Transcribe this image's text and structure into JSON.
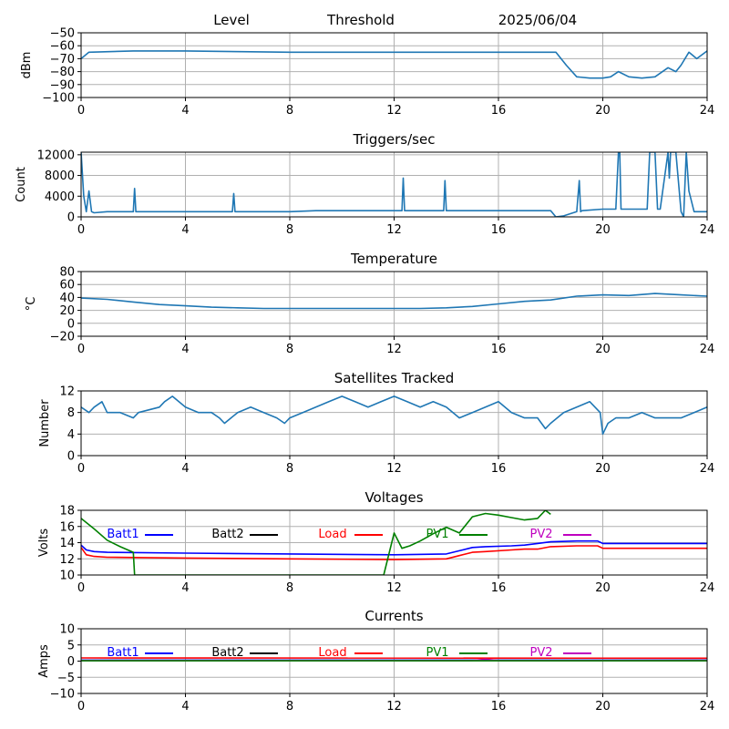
{
  "header": {
    "title_left": "Level",
    "title_mid": "Threshold",
    "title_date": "2025/06/04"
  },
  "chart_data": [
    {
      "id": "level",
      "type": "line",
      "title": "",
      "ylabel": "dBm",
      "xlim": [
        0,
        24
      ],
      "ylim": [
        -100,
        -50
      ],
      "xticks": [
        0,
        4,
        8,
        12,
        16,
        20,
        24
      ],
      "yticks": [
        -100,
        -90,
        -80,
        -70,
        -60,
        -50
      ],
      "grid": true,
      "series": [
        {
          "color": "#1f77b4",
          "x": [
            0,
            0.3,
            2,
            4,
            8,
            12,
            16,
            18.2,
            18.6,
            19,
            19.5,
            20,
            20.3,
            20.6,
            21,
            21.5,
            22,
            22.5,
            22.8,
            23,
            23.3,
            23.6,
            24
          ],
          "y": [
            -70,
            -65,
            -64,
            -64,
            -65,
            -65,
            -65,
            -65,
            -75,
            -84,
            -85,
            -85,
            -84,
            -80,
            -84,
            -85,
            -84,
            -77,
            -80,
            -75,
            -65,
            -70,
            -64
          ]
        }
      ]
    },
    {
      "id": "triggers",
      "type": "line",
      "title": "Triggers/sec",
      "ylabel": "Count",
      "xlim": [
        0,
        24
      ],
      "ylim": [
        0,
        12500
      ],
      "xticks": [
        0,
        4,
        8,
        12,
        16,
        20,
        24
      ],
      "yticks": [
        0,
        4000,
        8000,
        12000
      ],
      "grid": true,
      "series": [
        {
          "color": "#1f77b4",
          "x": [
            0,
            0.1,
            0.2,
            0.3,
            0.4,
            0.5,
            1,
            2,
            2.05,
            2.1,
            3,
            4,
            5,
            5.8,
            5.85,
            5.9,
            7,
            8,
            9,
            10,
            11,
            12,
            12.3,
            12.35,
            12.4,
            13,
            13.9,
            13.95,
            14,
            15,
            16,
            17,
            18,
            18.2,
            18.5,
            19,
            19.1,
            19.15,
            19.2,
            20,
            20.5,
            20.6,
            20.65,
            20.7,
            21,
            21.7,
            21.8,
            21.9,
            22,
            22.1,
            22.2,
            22.5,
            22.55,
            22.6,
            22.8,
            23,
            23.1,
            23.2,
            23.3,
            23.5,
            24
          ],
          "y": [
            12500,
            4000,
            1000,
            5000,
            1000,
            800,
            1000,
            1000,
            5500,
            1000,
            1000,
            1000,
            1000,
            1000,
            4500,
            1000,
            1000,
            1000,
            1200,
            1200,
            1200,
            1200,
            1200,
            7500,
            1200,
            1200,
            1200,
            7000,
            1200,
            1200,
            1200,
            1200,
            1200,
            0,
            200,
            1000,
            7000,
            1000,
            1200,
            1500,
            1500,
            12500,
            12500,
            1500,
            1500,
            1500,
            12500,
            12500,
            12500,
            1500,
            1500,
            12500,
            7500,
            12500,
            12500,
            1000,
            0,
            12500,
            5000,
            1000,
            1000
          ]
        }
      ]
    },
    {
      "id": "temperature",
      "type": "line",
      "title": "Temperature",
      "ylabel": "°C",
      "xlim": [
        0,
        24
      ],
      "ylim": [
        -20,
        80
      ],
      "xticks": [
        0,
        4,
        8,
        12,
        16,
        20,
        24
      ],
      "yticks": [
        -20,
        0,
        20,
        40,
        60,
        80
      ],
      "grid": true,
      "series": [
        {
          "color": "#1f77b4",
          "x": [
            0,
            1,
            2,
            3,
            4,
            5,
            6,
            7,
            8,
            10,
            12,
            13,
            14,
            15,
            16,
            17,
            18,
            19,
            20,
            21,
            22,
            23,
            24
          ],
          "y": [
            39,
            37,
            33,
            29,
            27,
            25,
            24,
            23,
            23,
            23,
            23,
            23,
            24,
            26,
            30,
            34,
            36,
            42,
            44,
            43,
            46,
            44,
            42
          ]
        }
      ]
    },
    {
      "id": "satellites",
      "type": "line",
      "title": "Satellites Tracked",
      "ylabel": "Number",
      "xlim": [
        0,
        24
      ],
      "ylim": [
        0,
        12
      ],
      "xticks": [
        0,
        4,
        8,
        12,
        16,
        20,
        24
      ],
      "yticks": [
        0,
        4,
        8,
        12
      ],
      "grid": true,
      "series": [
        {
          "color": "#1f77b4",
          "x": [
            0,
            0.3,
            0.5,
            0.8,
            1,
            1.5,
            2,
            2.2,
            3,
            3.2,
            3.5,
            4,
            4.5,
            5,
            5.3,
            5.5,
            6,
            6.5,
            7,
            7.5,
            7.8,
            8,
            8.5,
            9,
            9.5,
            10,
            10.5,
            11,
            11.5,
            12,
            12.5,
            13,
            13.5,
            14,
            14.5,
            15,
            15.5,
            16,
            16.5,
            17,
            17.5,
            17.8,
            18,
            18.5,
            19,
            19.5,
            19.9,
            20,
            20.2,
            20.5,
            21,
            21.5,
            22,
            23,
            23.5,
            24
          ],
          "y": [
            9,
            8,
            9,
            10,
            8,
            8,
            7,
            8,
            9,
            10,
            11,
            9,
            8,
            8,
            7,
            6,
            8,
            9,
            8,
            7,
            6,
            7,
            8,
            9,
            10,
            11,
            10,
            9,
            10,
            11,
            10,
            9,
            10,
            9,
            7,
            8,
            9,
            10,
            8,
            7,
            7,
            5,
            6,
            8,
            9,
            10,
            8,
            4,
            6,
            7,
            7,
            8,
            7,
            7,
            8,
            9
          ]
        }
      ]
    },
    {
      "id": "voltages",
      "type": "line",
      "title": "Voltages",
      "ylabel": "Volts",
      "xlim": [
        0,
        24
      ],
      "ylim": [
        10,
        18
      ],
      "xticks": [
        0,
        4,
        8,
        12,
        16,
        20,
        24
      ],
      "yticks": [
        10,
        12,
        14,
        16,
        18
      ],
      "grid": true,
      "legend": [
        {
          "label": "Batt1",
          "color": "#0000ff"
        },
        {
          "label": "Batt2",
          "color": "#000000"
        },
        {
          "label": "Load",
          "color": "#ff0000"
        },
        {
          "label": "PV1",
          "color": "#008000"
        },
        {
          "label": "PV2",
          "color": "#bf00bf"
        }
      ],
      "series": [
        {
          "name": "Batt1",
          "color": "#0000ff",
          "x": [
            0,
            0.2,
            0.5,
            1,
            4,
            8,
            12,
            14,
            14.5,
            15,
            15.5,
            16.5,
            17,
            17.5,
            18,
            19,
            19.8,
            20,
            22,
            24
          ],
          "y": [
            13.7,
            13.1,
            12.9,
            12.8,
            12.7,
            12.6,
            12.5,
            12.6,
            13,
            13.4,
            13.5,
            13.6,
            13.7,
            13.9,
            14.1,
            14.2,
            14.2,
            13.9,
            13.9,
            13.9
          ]
        },
        {
          "name": "Load",
          "color": "#ff0000",
          "x": [
            0,
            0.2,
            0.5,
            1,
            4,
            8,
            12,
            14,
            14.5,
            15,
            15.5,
            16.5,
            17,
            17.5,
            18,
            19,
            19.8,
            20,
            22,
            24
          ],
          "y": [
            13.4,
            12.5,
            12.3,
            12.2,
            12.1,
            12,
            11.9,
            12,
            12.4,
            12.8,
            12.9,
            13.1,
            13.2,
            13.2,
            13.5,
            13.6,
            13.6,
            13.3,
            13.3,
            13.3
          ]
        },
        {
          "name": "PV1",
          "color": "#008000",
          "x": [
            0,
            0.5,
            1,
            1.5,
            2,
            2.05,
            11.6,
            12,
            12.3,
            12.6,
            13,
            13.5,
            14,
            14.5,
            15,
            15.5,
            16,
            16.5,
            17,
            17.5,
            17.8,
            18
          ],
          "y": [
            17,
            15.7,
            14.3,
            13.5,
            12.8,
            10,
            10,
            15.2,
            13.3,
            13.6,
            14.2,
            15.1,
            15.9,
            15.2,
            17.2,
            17.6,
            17.4,
            17.1,
            16.8,
            17,
            18,
            17.5
          ]
        }
      ]
    },
    {
      "id": "currents",
      "type": "line",
      "title": "Currents",
      "ylabel": "Amps",
      "xlim": [
        0,
        24
      ],
      "ylim": [
        -10,
        10
      ],
      "xticks": [
        0,
        4,
        8,
        12,
        16,
        20,
        24
      ],
      "yticks": [
        -10,
        -5,
        0,
        5,
        10
      ],
      "grid": true,
      "legend": [
        {
          "label": "Batt1",
          "color": "#0000ff"
        },
        {
          "label": "Batt2",
          "color": "#000000"
        },
        {
          "label": "Load",
          "color": "#ff0000"
        },
        {
          "label": "PV1",
          "color": "#008000"
        },
        {
          "label": "PV2",
          "color": "#bf00bf"
        }
      ],
      "series": [
        {
          "name": "Load",
          "color": "#ff0000",
          "x": [
            0,
            24
          ],
          "y": [
            1,
            0.9
          ]
        },
        {
          "name": "Batt1",
          "color": "#0000ff",
          "x": [
            0,
            24
          ],
          "y": [
            0.3,
            0.3
          ]
        },
        {
          "name": "PV2",
          "color": "#bf00bf",
          "x": [
            0,
            15,
            15.5,
            16,
            24
          ],
          "y": [
            0.2,
            0.2,
            0.6,
            0.2,
            0.2
          ]
        },
        {
          "name": "PV1",
          "color": "#008000",
          "x": [
            0,
            24
          ],
          "y": [
            0.1,
            0.1
          ]
        }
      ]
    }
  ]
}
